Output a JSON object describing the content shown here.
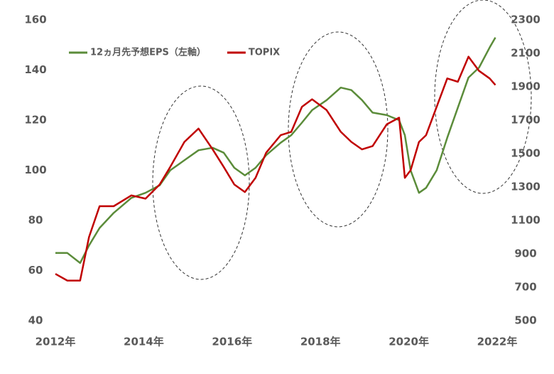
{
  "chart_data": {
    "type": "line",
    "legend": "upper left",
    "x": [
      2012.0,
      2012.27,
      2012.56,
      2012.76,
      2013.0,
      2013.32,
      2013.72,
      2014.04,
      2014.36,
      2014.6,
      2014.92,
      2015.24,
      2015.56,
      2015.81,
      2016.05,
      2016.29,
      2016.53,
      2016.77,
      2017.1,
      2017.34,
      2017.58,
      2017.81,
      2018.14,
      2018.46,
      2018.7,
      2018.94,
      2019.18,
      2019.5,
      2019.78,
      2019.91,
      2020.04,
      2020.23,
      2020.39,
      2020.63,
      2020.87,
      2021.11,
      2021.35,
      2021.59,
      2021.83,
      2021.96
    ],
    "xlim": [
      2012,
      2022
    ],
    "xticks": [
      {
        "value": 2012,
        "label": "2012年"
      },
      {
        "value": 2014,
        "label": "2014年"
      },
      {
        "value": 2016,
        "label": "2016年"
      },
      {
        "value": 2018,
        "label": "2018年"
      },
      {
        "value": 2020,
        "label": "2020年"
      },
      {
        "value": 2022,
        "label": "2022年"
      }
    ],
    "ylim": [
      40,
      160
    ],
    "yticks": [
      40,
      60,
      80,
      100,
      120,
      140,
      160
    ],
    "y2lim": [
      500,
      2300
    ],
    "y2ticks": [
      500,
      700,
      900,
      1100,
      1300,
      1500,
      1700,
      1900,
      2100,
      2300
    ],
    "series": [
      {
        "name": "12ヵ月先予想EPS（左軸）",
        "color": "#5b8c3a",
        "values": [
          67,
          67,
          63,
          70,
          77,
          83,
          89,
          91,
          94,
          100,
          104,
          108,
          109,
          107,
          101,
          98,
          101,
          106,
          111,
          114,
          119,
          124,
          128,
          133,
          132,
          128,
          123,
          122,
          120,
          114,
          100,
          91,
          93,
          100,
          113,
          125,
          137,
          141,
          149,
          153
        ]
      },
      {
        "name": "TOPIX",
        "color": "#c00000",
        "axis": "y2",
        "values": [
          780,
          740,
          740,
          1000,
          1185,
          1185,
          1250,
          1230,
          1315,
          1420,
          1570,
          1650,
          1525,
          1420,
          1315,
          1270,
          1355,
          1505,
          1610,
          1630,
          1780,
          1825,
          1760,
          1630,
          1570,
          1525,
          1545,
          1675,
          1715,
          1355,
          1400,
          1570,
          1610,
          1780,
          1950,
          1930,
          2080,
          1995,
          1950,
          1910
        ]
      }
    ]
  }
}
